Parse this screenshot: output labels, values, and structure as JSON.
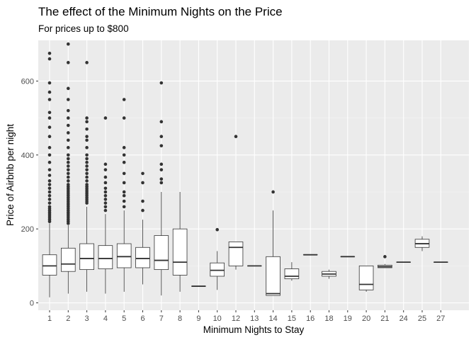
{
  "chart_data": {
    "type": "box",
    "title": "The effect of the Minimum Nights on the Price",
    "subtitle": "For prices up to $800",
    "xlabel": "Minimum Nights to Stay",
    "ylabel": "Price of Airbnb per night",
    "ylim": [
      -20,
      710
    ],
    "yticks": [
      0,
      200,
      400,
      600
    ],
    "grid": true,
    "categories": [
      "1",
      "2",
      "3",
      "4",
      "5",
      "6",
      "7",
      "8",
      "9",
      "10",
      "12",
      "13",
      "14",
      "15",
      "16",
      "18",
      "19",
      "20",
      "21",
      "24",
      "25",
      "27"
    ],
    "boxes": [
      {
        "x": "1",
        "q1": 75,
        "median": 100,
        "q3": 130,
        "whisker_low": 15,
        "whisker_high": 215,
        "outliers": [
          220,
          225,
          230,
          235,
          240,
          245,
          250,
          255,
          260,
          270,
          280,
          290,
          300,
          310,
          320,
          330,
          345,
          360,
          380,
          400,
          420,
          450,
          475,
          500,
          515,
          550,
          570,
          595,
          660,
          675
        ]
      },
      {
        "x": "2",
        "q1": 85,
        "median": 105,
        "q3": 148,
        "whisker_low": 25,
        "whisker_high": 210,
        "outliers": [
          215,
          220,
          225,
          230,
          235,
          240,
          245,
          250,
          255,
          260,
          265,
          270,
          275,
          280,
          285,
          290,
          295,
          300,
          305,
          310,
          315,
          320,
          330,
          340,
          350,
          360,
          370,
          380,
          390,
          400,
          420,
          440,
          460,
          480,
          500,
          520,
          550,
          580,
          650,
          700
        ]
      },
      {
        "x": "3",
        "q1": 90,
        "median": 120,
        "q3": 160,
        "whisker_low": 30,
        "whisker_high": 260,
        "outliers": [
          270,
          275,
          280,
          285,
          290,
          295,
          300,
          305,
          310,
          315,
          320,
          330,
          340,
          350,
          360,
          370,
          380,
          390,
          400,
          420,
          440,
          450,
          470,
          490,
          500,
          650
        ]
      },
      {
        "x": "4",
        "q1": 92,
        "median": 120,
        "q3": 155,
        "whisker_low": 25,
        "whisker_high": 240,
        "outliers": [
          250,
          260,
          270,
          280,
          290,
          300,
          310,
          325,
          340,
          360,
          375,
          500
        ]
      },
      {
        "x": "5",
        "q1": 95,
        "median": 125,
        "q3": 160,
        "whisker_low": 30,
        "whisker_high": 250,
        "outliers": [
          260,
          275,
          290,
          300,
          325,
          350,
          380,
          400,
          420,
          500,
          550
        ]
      },
      {
        "x": "6",
        "q1": 95,
        "median": 120,
        "q3": 150,
        "whisker_low": 50,
        "whisker_high": 225,
        "outliers": [
          250,
          275,
          325,
          350
        ]
      },
      {
        "x": "7",
        "q1": 90,
        "median": 115,
        "q3": 182,
        "whisker_low": 20,
        "whisker_high": 300,
        "outliers": [
          325,
          335,
          360,
          375,
          425,
          450,
          490,
          595
        ]
      },
      {
        "x": "8",
        "q1": 75,
        "median": 110,
        "q3": 200,
        "whisker_low": 30,
        "whisker_high": 300,
        "outliers": []
      },
      {
        "x": "9",
        "q1": 45,
        "median": 45,
        "q3": 45,
        "whisker_low": 45,
        "whisker_high": 45,
        "outliers": []
      },
      {
        "x": "10",
        "q1": 72,
        "median": 88,
        "q3": 108,
        "whisker_low": 35,
        "whisker_high": 140,
        "outliers": [
          198
        ]
      },
      {
        "x": "12",
        "q1": 100,
        "median": 150,
        "q3": 165,
        "whisker_low": 90,
        "whisker_high": 165,
        "outliers": [
          450
        ]
      },
      {
        "x": "13",
        "q1": 100,
        "median": 100,
        "q3": 100,
        "whisker_low": 100,
        "whisker_high": 100,
        "outliers": []
      },
      {
        "x": "14",
        "q1": 20,
        "median": 25,
        "q3": 125,
        "whisker_low": 20,
        "whisker_high": 250,
        "outliers": [
          300
        ]
      },
      {
        "x": "15",
        "q1": 65,
        "median": 72,
        "q3": 92,
        "whisker_low": 60,
        "whisker_high": 110,
        "outliers": []
      },
      {
        "x": "16",
        "q1": 130,
        "median": 130,
        "q3": 130,
        "whisker_low": 130,
        "whisker_high": 130,
        "outliers": []
      },
      {
        "x": "18",
        "q1": 72,
        "median": 78,
        "q3": 85,
        "whisker_low": 65,
        "whisker_high": 90,
        "outliers": []
      },
      {
        "x": "19",
        "q1": 125,
        "median": 125,
        "q3": 125,
        "whisker_low": 125,
        "whisker_high": 125,
        "outliers": []
      },
      {
        "x": "20",
        "q1": 35,
        "median": 50,
        "q3": 100,
        "whisker_low": 30,
        "whisker_high": 100,
        "outliers": []
      },
      {
        "x": "21",
        "q1": 95,
        "median": 98,
        "q3": 102,
        "whisker_low": 95,
        "whisker_high": 105,
        "outliers": [
          125
        ]
      },
      {
        "x": "24",
        "q1": 110,
        "median": 110,
        "q3": 110,
        "whisker_low": 110,
        "whisker_high": 110,
        "outliers": []
      },
      {
        "x": "25",
        "q1": 150,
        "median": 160,
        "q3": 172,
        "whisker_low": 140,
        "whisker_high": 180,
        "outliers": []
      },
      {
        "x": "27",
        "q1": 110,
        "median": 110,
        "q3": 110,
        "whisker_low": 110,
        "whisker_high": 110,
        "outliers": []
      }
    ],
    "colors": {
      "panel": "#ebebeb",
      "grid_major": "#ffffff",
      "box_fill": "#ffffff",
      "box_line": "#333333",
      "outlier": "#333333"
    }
  }
}
